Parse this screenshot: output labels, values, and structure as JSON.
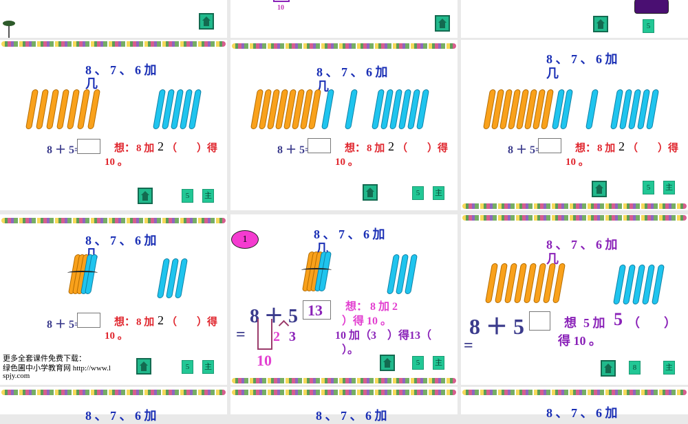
{
  "slides": [
    {
      "id": "r0c0",
      "home": ""
    },
    {
      "id": "r0c1",
      "label": "10"
    },
    {
      "id": "r0c2",
      "btn": "5"
    },
    {
      "id": "r1c0",
      "title": "8 、 7 、 6 加",
      "title2": "几",
      "eq": "8 ＋ 5=",
      "think": "想：",
      "think2": "8 加",
      "answer": "2",
      "paren": "（",
      "paren2": "）得",
      "ten": "10 。",
      "btn": "5",
      "btn2": "主"
    },
    {
      "id": "r1c1",
      "title": "8 、 7 、 6 加",
      "title2": "几",
      "eq": "8 ＋ 5=",
      "think": "想：",
      "think2": "8 加",
      "answer": "2",
      "paren": "（",
      "paren2": "）得",
      "ten": "10 。",
      "btn": "5",
      "btn2": "主"
    },
    {
      "id": "r1c2",
      "title": "8 、 7 、 6 加",
      "title2": "几",
      "eq": "8 ＋ 5=",
      "think": "想：",
      "think2": "8 加",
      "answer": "2",
      "paren": "（",
      "paren2": "）得",
      "ten": "10 。",
      "btn": "5",
      "btn2": "主"
    },
    {
      "id": "r2c0",
      "title": "8 、 7 、 6 加",
      "title2": "几",
      "eq": "8 ＋ 5=",
      "think": "想：",
      "think2": "8 加",
      "answer": "2",
      "paren": "（",
      "paren2": "）得",
      "ten": "10 。",
      "btn": "5",
      "btn2": "主",
      "footer": [
        "更多全套课件免费下载：",
        "绿色圃中小学教育网 http://www.l",
        "spjy.com"
      ]
    },
    {
      "id": "r2c1",
      "badge": "1",
      "title": "8 、 7 、 6 加",
      "title2": "几",
      "eq": "8 ＋ 5",
      "result": "13",
      "equals": "=",
      "split_a": "2",
      "split_b": "3",
      "ten": "10",
      "line1": "想： 8 加 2",
      "line2": "）得 10 。",
      "line3": "10 加（3　）得13（",
      "line4": "）。",
      "btn": "5",
      "btn2": "主"
    },
    {
      "id": "r2c2",
      "title": "8 、 7 、 6 加",
      "title2": "几",
      "eq": "8 ＋ 5",
      "equals": "=",
      "think": "想",
      "think2": "5 加",
      "answer": "5",
      "paren": "（",
      "paren2": "）",
      "line2": "得 10 。",
      "btn": "8",
      "btn2": "主"
    },
    {
      "id": "r3",
      "title": "8 、 7 、 6 加"
    }
  ],
  "colors": {
    "orange": "#f9a11b",
    "blue": "#1fc4ee",
    "button": "#22c795",
    "title_blue": "#1a2fb5",
    "red": "#e0262e",
    "purple": "#8a22b8",
    "pink": "#e23fd0"
  }
}
